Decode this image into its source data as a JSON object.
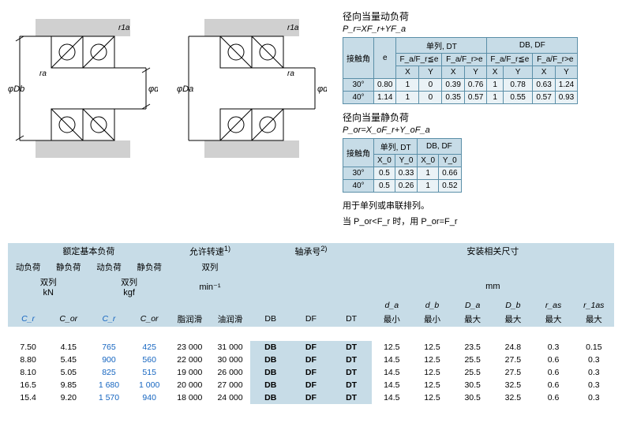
{
  "diagrams": {
    "leftLabels": {
      "phiDb": "φD_b",
      "phida": "φd_a",
      "r1a": "r_1a",
      "ra": "r_a"
    },
    "rightLabels": {
      "phiDa": "φD_a",
      "phidb": "φd_b",
      "r1a": "r_1a",
      "ra": "r_a"
    }
  },
  "dynLoad": {
    "title": "径向当量动负荷",
    "formula": "P_r=XF_r+YF_a",
    "corner": "接触角",
    "eHdr": "e",
    "singleGrp": "单列, DT",
    "dbdfGrp": "DB, DF",
    "faLe": "F_a/F_r≦e",
    "faGt": "F_a/F_r>e",
    "X": "X",
    "Y": "Y",
    "rows": [
      {
        "ang": "30°",
        "e": "0.80",
        "s": [
          "1",
          "0",
          "0.39",
          "0.76"
        ],
        "d": [
          "1",
          "0.78",
          "0.63",
          "1.24"
        ]
      },
      {
        "ang": "40°",
        "e": "1.14",
        "s": [
          "1",
          "0",
          "0.35",
          "0.57"
        ],
        "d": [
          "1",
          "0.55",
          "0.57",
          "0.93"
        ]
      }
    ]
  },
  "statLoad": {
    "title": "径向当量静负荷",
    "formula": "P_or=X_oF_r+Y_oF_a",
    "corner": "接触角",
    "singleGrp": "单列, DT",
    "dbdfGrp": "DB, DF",
    "X0": "X_0",
    "Y0": "Y_0",
    "rows": [
      {
        "ang": "30°",
        "s": [
          "0.5",
          "0.33"
        ],
        "d": [
          "1",
          "0.66"
        ]
      },
      {
        "ang": "40°",
        "s": [
          "0.5",
          "0.26"
        ],
        "d": [
          "1",
          "0.52"
        ]
      }
    ],
    "noteA": "用于单列或串联排列。",
    "noteB": "当 P_or<F_r 时，用 P_or=F_r"
  },
  "mainTable": {
    "groups": {
      "load": "额定基本负荷",
      "speed": "允许转速",
      "speedSup": "1)",
      "bearing": "轴承号",
      "bearingSup": "2)",
      "mount": "安装相关尺寸"
    },
    "sub": {
      "dyn": "动负荷",
      "stat": "静负荷",
      "duplex": "双列",
      "kn": "kN",
      "kgf": "kgf",
      "minInv": "min⁻¹",
      "mm": "mm",
      "grease": "脂润滑",
      "oil": "油润滑",
      "DB": "DB",
      "DF": "DF",
      "DT": "DT",
      "da": "d_a",
      "db": "d_b",
      "Da": "D_a",
      "Db": "D_b",
      "ras": "r_as",
      "r1as": "r_1as",
      "min": "最小",
      "max": "最大"
    },
    "sym": {
      "Cr": "C_r",
      "Cor": "C_or"
    },
    "rows": [
      [
        "7.50",
        "4.15",
        "765",
        "425",
        "23 000",
        "31 000",
        "DB",
        "DF",
        "DT",
        "12.5",
        "12.5",
        "23.5",
        "24.8",
        "0.3",
        "0.15"
      ],
      [
        "8.80",
        "5.45",
        "900",
        "560",
        "22 000",
        "30 000",
        "DB",
        "DF",
        "DT",
        "14.5",
        "12.5",
        "25.5",
        "27.5",
        "0.6",
        "0.3"
      ],
      [
        "8.10",
        "5.05",
        "825",
        "515",
        "19 000",
        "26 000",
        "DB",
        "DF",
        "DT",
        "14.5",
        "12.5",
        "25.5",
        "27.5",
        "0.6",
        "0.3"
      ],
      [
        "16.5",
        "9.85",
        "1 680",
        "1 000",
        "20 000",
        "27 000",
        "DB",
        "DF",
        "DT",
        "14.5",
        "12.5",
        "30.5",
        "32.5",
        "0.6",
        "0.3"
      ],
      [
        "15.4",
        "9.20",
        "1 570",
        "940",
        "18 000",
        "24 000",
        "DB",
        "DF",
        "DT",
        "14.5",
        "12.5",
        "30.5",
        "32.5",
        "0.6",
        "0.3"
      ]
    ]
  }
}
